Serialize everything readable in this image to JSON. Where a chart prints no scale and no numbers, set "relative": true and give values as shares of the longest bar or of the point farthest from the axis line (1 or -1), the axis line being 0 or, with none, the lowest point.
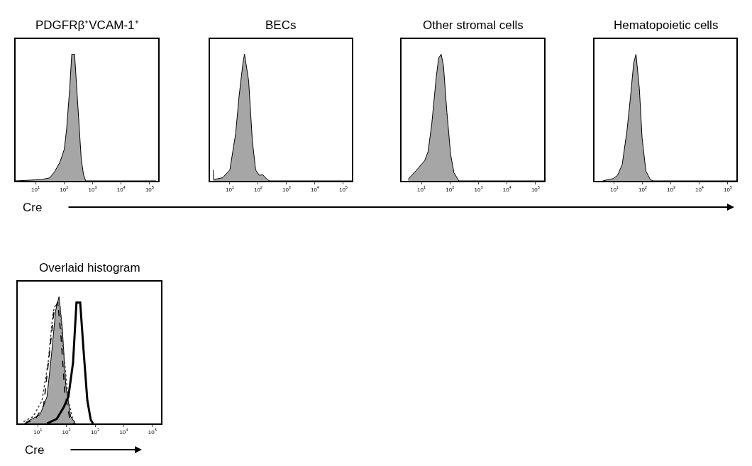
{
  "chart_data": [
    {
      "type": "area",
      "title": "PDGFRβ⁺VCAM-1⁺",
      "xlabel": "Cre",
      "relative": true,
      "log": "x",
      "tick_labels": "x",
      "xlim": [
        2,
        200000
      ],
      "xticks": [
        {
          "value": 10,
          "label": "10$^{1}$"
        },
        {
          "value": 100,
          "label": "10$^{2}$"
        },
        {
          "value": 1000,
          "label": "10$^{3}$"
        },
        {
          "value": 10000,
          "label": "10$^{4}$"
        },
        {
          "value": 100000,
          "label": "10$^{5}$"
        }
      ],
      "x": [
        2,
        16,
        32,
        47,
        69,
        83,
        102,
        123,
        158,
        186,
        234,
        295,
        398,
        479,
        575,
        170000
      ],
      "series": [
        {
          "color": "#a6a6a6",
          "values": [
            0,
            0.01,
            0.024,
            0.074,
            0.14,
            0.19,
            0.25,
            0.41,
            0.73,
            1,
            1,
            0.64,
            0.18,
            0.05,
            0,
            0
          ]
        }
      ]
    },
    {
      "type": "area",
      "title": "BECs",
      "relative": true,
      "log": "x",
      "tick_labels": "x",
      "xlim": [
        2,
        200000
      ],
      "xticks": [
        {
          "value": 10,
          "label": "10$^{1}$"
        },
        {
          "value": 100,
          "label": "10$^{2}$"
        },
        {
          "value": 1000,
          "label": "10$^{3}$"
        },
        {
          "value": 10000,
          "label": "10$^{4}$"
        },
        {
          "value": 100000,
          "label": "10$^{5}$"
        }
      ],
      "x": [
        2.6,
        2.7,
        5.6,
        10,
        16,
        21,
        29,
        33,
        46,
        62,
        81,
        110,
        145,
        209,
        251,
        200000
      ],
      "series": [
        {
          "color": "#a6a6a6",
          "values": [
            0.086,
            0.01,
            0.025,
            0.086,
            0.37,
            0.66,
            0.93,
            1,
            0.79,
            0.32,
            0.086,
            0.044,
            0.048,
            0.01,
            0,
            0
          ]
        }
      ]
    },
    {
      "type": "area",
      "title": "Other stromal cells",
      "relative": true,
      "log": "x",
      "tick_labels": "x",
      "xlim": [
        2,
        200000
      ],
      "xticks": [
        {
          "value": 10,
          "label": "10$^{1}$"
        },
        {
          "value": 100,
          "label": "10$^{2}$"
        },
        {
          "value": 1000,
          "label": "10$^{3}$"
        },
        {
          "value": 10000,
          "label": "10$^{4}$"
        },
        {
          "value": 100000,
          "label": "10$^{5}$"
        }
      ],
      "x": [
        3.4,
        6.6,
        13,
        17,
        23,
        33,
        40,
        49,
        59,
        78,
        105,
        138,
        204,
        200000
      ],
      "series": [
        {
          "color": "#a6a6a6",
          "values": [
            0.013,
            0.083,
            0.16,
            0.23,
            0.45,
            0.82,
            0.97,
            1,
            0.91,
            0.54,
            0.21,
            0.064,
            0,
            0
          ]
        }
      ]
    },
    {
      "type": "area",
      "title": "Hematopoietic cells",
      "relative": true,
      "log": "x",
      "tick_labels": "x",
      "xlim": [
        2,
        200000
      ],
      "xticks": [
        {
          "value": 10,
          "label": "10$^{1}$"
        },
        {
          "value": 100,
          "label": "10$^{2}$"
        },
        {
          "value": 1000,
          "label": "10$^{3}$"
        },
        {
          "value": 10000,
          "label": "10$^{4}$"
        },
        {
          "value": 100000,
          "label": "10$^{5}$"
        }
      ],
      "x": [
        3.9,
        9.1,
        13,
        19,
        28,
        37,
        48,
        58,
        76,
        95,
        129,
        186,
        245,
        200000
      ],
      "series": [
        {
          "color": "#a6a6a6",
          "values": [
            0,
            0.018,
            0.044,
            0.13,
            0.4,
            0.66,
            0.93,
            1,
            0.73,
            0.34,
            0.079,
            0.009,
            0,
            0
          ]
        }
      ]
    },
    {
      "type": "area",
      "title": "Overlaid histogram",
      "xlabel": "Cre",
      "relative": true,
      "log": "x",
      "tick_labels": "x",
      "xlim": [
        2,
        200000
      ],
      "xticks": [
        {
          "value": 10,
          "label": "10$^{1}$"
        },
        {
          "value": 100,
          "label": "10$^{2}$"
        },
        {
          "value": 1000,
          "label": "10$^{3}$"
        },
        {
          "value": 10000,
          "label": "10$^{4}$"
        },
        {
          "value": 100000,
          "label": "10$^{5}$"
        }
      ],
      "series": [
        {
          "type": "area",
          "color": "#a6a6a6",
          "x": [
            3.9,
            12,
            21,
            31,
            42,
            55,
            72,
            95,
            141,
            204
          ],
          "values": [
            0.01,
            0.07,
            0.21,
            0.57,
            0.89,
            1,
            0.75,
            0.3,
            0.054,
            0
          ]
        },
        {
          "type": "line",
          "line_style": "dotted",
          "color": "#404040",
          "x": [
            3.2,
            6.9,
            14,
            23,
            34,
            42,
            60,
            79,
            117,
            170,
            224
          ],
          "values": [
            0.014,
            0.054,
            0.18,
            0.48,
            0.875,
            0.94,
            0.93,
            0.57,
            0.18,
            0.027,
            0
          ]
        },
        {
          "type": "line",
          "line_style": "dashed",
          "color": "#000000",
          "x": [
            3.5,
            8.3,
            16,
            26,
            37,
            50,
            66,
            87,
            129,
            186
          ],
          "values": [
            0,
            0.036,
            0.14,
            0.57,
            0.89,
            0.96,
            0.66,
            0.25,
            0.045,
            0
          ]
        },
        {
          "type": "line",
          "line_style": "solid",
          "color": "#000000",
          "x": [
            21,
            46,
            79,
            117,
            170,
            224,
            302,
            398,
            537,
            708,
            851
          ],
          "values": [
            0,
            0.036,
            0.125,
            0.21,
            0.48,
            0.955,
            0.955,
            0.57,
            0.18,
            0.027,
            0
          ]
        }
      ]
    }
  ]
}
